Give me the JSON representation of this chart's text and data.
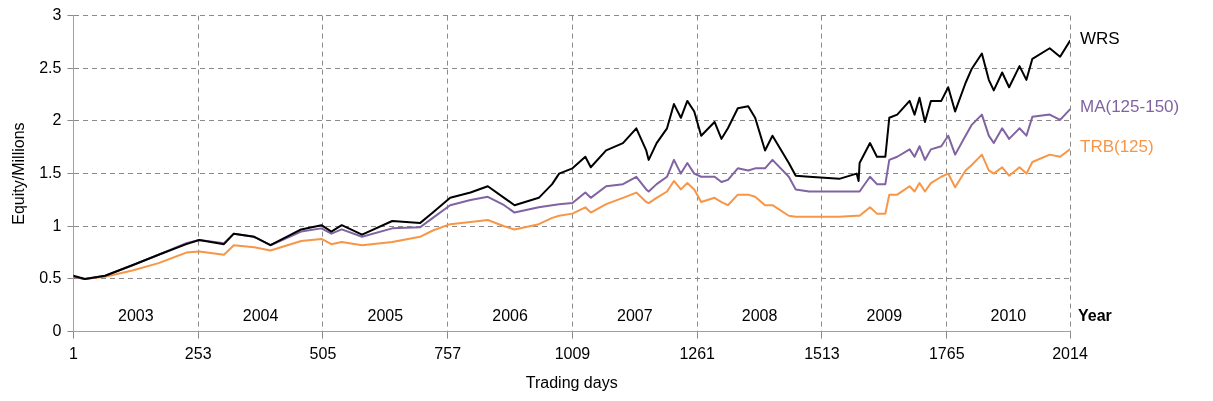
{
  "chart_data": {
    "type": "line",
    "xlabel": "Trading days",
    "ylabel": "Equity/Millions",
    "xlim": [
      1,
      2014
    ],
    "xticks": [
      1,
      253,
      505,
      757,
      1009,
      1261,
      1513,
      1765,
      2014
    ],
    "ylim": [
      0,
      3
    ],
    "yticks": [
      0,
      0.5,
      1,
      1.5,
      2,
      2.5,
      3
    ],
    "grid": true,
    "legend": false,
    "x": [
      1,
      24,
      65,
      120,
      173,
      229,
      255,
      305,
      325,
      366,
      399,
      461,
      502,
      522,
      543,
      584,
      645,
      701,
      727,
      762,
      803,
      838,
      871,
      892,
      941,
      968,
      982,
      1009,
      1035,
      1046,
      1077,
      1111,
      1138,
      1158,
      1163,
      1179,
      1200,
      1214,
      1228,
      1241,
      1255,
      1269,
      1296,
      1310,
      1323,
      1343,
      1364,
      1378,
      1398,
      1413,
      1446,
      1460,
      1487,
      1548,
      1583,
      1587,
      1589,
      1610,
      1624,
      1641,
      1649,
      1665,
      1690,
      1700,
      1710,
      1721,
      1733,
      1754,
      1768,
      1782,
      1803,
      1815,
      1836,
      1850,
      1860,
      1877,
      1891,
      1912,
      1926,
      1938,
      1973,
      1994,
      2014
    ],
    "series": [
      {
        "name": "WRS",
        "color": "#000000",
        "values": [
          0.53,
          0.5,
          0.53,
          0.63,
          0.73,
          0.83,
          0.87,
          0.83,
          0.93,
          0.9,
          0.82,
          0.97,
          1.01,
          0.95,
          1.01,
          0.92,
          1.05,
          1.03,
          1.13,
          1.27,
          1.32,
          1.38,
          1.27,
          1.2,
          1.27,
          1.4,
          1.5,
          1.55,
          1.66,
          1.56,
          1.72,
          1.79,
          1.93,
          1.72,
          1.63,
          1.79,
          1.93,
          2.16,
          2.03,
          2.19,
          2.09,
          1.86,
          1.99,
          1.83,
          1.93,
          2.12,
          2.14,
          2.03,
          1.72,
          1.86,
          1.6,
          1.48,
          1.47,
          1.45,
          1.5,
          1.43,
          1.6,
          1.79,
          1.66,
          1.66,
          2.03,
          2.06,
          2.19,
          2.06,
          2.22,
          1.99,
          2.19,
          2.19,
          2.32,
          2.09,
          2.36,
          2.49,
          2.64,
          2.39,
          2.29,
          2.46,
          2.32,
          2.52,
          2.39,
          2.59,
          2.69,
          2.61,
          2.76
        ]
      },
      {
        "name": "MA(125-150)",
        "color": "#8064a2",
        "values": [
          0.52,
          0.5,
          0.53,
          0.63,
          0.73,
          0.84,
          0.87,
          0.84,
          0.93,
          0.9,
          0.82,
          0.95,
          0.98,
          0.93,
          0.97,
          0.9,
          0.98,
          0.99,
          1.08,
          1.2,
          1.25,
          1.28,
          1.2,
          1.13,
          1.18,
          1.2,
          1.21,
          1.22,
          1.32,
          1.27,
          1.38,
          1.4,
          1.47,
          1.35,
          1.33,
          1.4,
          1.47,
          1.63,
          1.5,
          1.6,
          1.5,
          1.47,
          1.47,
          1.42,
          1.44,
          1.55,
          1.53,
          1.55,
          1.55,
          1.63,
          1.47,
          1.35,
          1.33,
          1.33,
          1.33,
          1.33,
          1.33,
          1.47,
          1.4,
          1.4,
          1.63,
          1.66,
          1.73,
          1.66,
          1.76,
          1.63,
          1.73,
          1.76,
          1.86,
          1.68,
          1.86,
          1.96,
          2.06,
          1.86,
          1.79,
          1.93,
          1.83,
          1.93,
          1.86,
          2.04,
          2.06,
          2.01,
          2.11
        ]
      },
      {
        "name": "TRB(125)",
        "color": "#f79646",
        "values": [
          0.52,
          0.5,
          0.52,
          0.58,
          0.65,
          0.75,
          0.76,
          0.73,
          0.82,
          0.8,
          0.77,
          0.86,
          0.88,
          0.83,
          0.85,
          0.82,
          0.85,
          0.9,
          0.96,
          1.02,
          1.04,
          1.06,
          1.0,
          0.97,
          1.02,
          1.08,
          1.1,
          1.12,
          1.18,
          1.13,
          1.21,
          1.27,
          1.32,
          1.23,
          1.22,
          1.27,
          1.33,
          1.43,
          1.35,
          1.41,
          1.35,
          1.23,
          1.27,
          1.23,
          1.2,
          1.3,
          1.3,
          1.28,
          1.2,
          1.2,
          1.1,
          1.09,
          1.09,
          1.09,
          1.1,
          1.1,
          1.1,
          1.18,
          1.12,
          1.12,
          1.3,
          1.3,
          1.38,
          1.33,
          1.41,
          1.33,
          1.41,
          1.47,
          1.5,
          1.37,
          1.53,
          1.58,
          1.68,
          1.53,
          1.5,
          1.56,
          1.48,
          1.56,
          1.5,
          1.61,
          1.68,
          1.66,
          1.73
        ]
      }
    ],
    "annotations": [
      "2003",
      "2004",
      "2005",
      "2006",
      "2007",
      "2008",
      "2009",
      "2010",
      "Year"
    ]
  }
}
